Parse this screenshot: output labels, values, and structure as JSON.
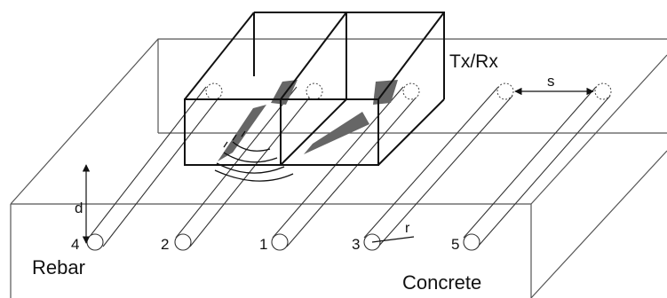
{
  "labels": {
    "txrx": "Tx/Rx",
    "spacing": "s",
    "depth": "d",
    "radius": "r",
    "rebar": "Rebar",
    "concrete": "Concrete"
  },
  "rebars": [
    {
      "id": "4"
    },
    {
      "id": "2"
    },
    {
      "id": "1"
    },
    {
      "id": "3"
    },
    {
      "id": "5"
    }
  ]
}
